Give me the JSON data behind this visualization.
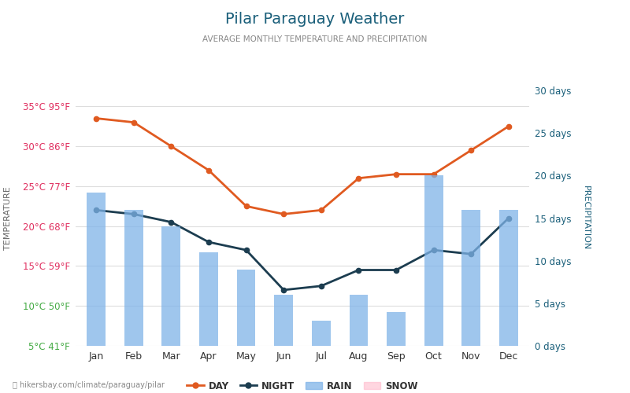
{
  "title": "Pilar Paraguay Weather",
  "subtitle": "AVERAGE MONTHLY TEMPERATURE AND PRECIPITATION",
  "months": [
    "Jan",
    "Feb",
    "Mar",
    "Apr",
    "May",
    "Jun",
    "Jul",
    "Aug",
    "Sep",
    "Oct",
    "Nov",
    "Dec"
  ],
  "day_temps": [
    33.5,
    33.0,
    30.0,
    27.0,
    22.5,
    21.5,
    22.0,
    26.0,
    26.5,
    26.5,
    29.5,
    32.5
  ],
  "night_temps": [
    22.0,
    21.5,
    20.5,
    18.0,
    17.0,
    12.0,
    12.5,
    14.5,
    14.5,
    17.0,
    16.5,
    21.0
  ],
  "rain_days": [
    18,
    16,
    14,
    11,
    9,
    6,
    3,
    6,
    4,
    20,
    16,
    16
  ],
  "ylim_temp": [
    5,
    37
  ],
  "ylim_precip": [
    0,
    30
  ],
  "yticks_temp": [
    5,
    10,
    15,
    20,
    25,
    30,
    35
  ],
  "ytick_labels_temp": [
    "5°C 41°F",
    "10°C 50°F",
    "15°C 59°F",
    "20°C 68°F",
    "25°C 77°F",
    "30°C 86°F",
    "35°C 95°F"
  ],
  "yticks_precip": [
    0,
    5,
    10,
    15,
    20,
    25,
    30
  ],
  "ytick_labels_precip": [
    "0 days",
    "5 days",
    "10 days",
    "15 days",
    "20 days",
    "25 days",
    "30 days"
  ],
  "day_color": "#e05a20",
  "night_color": "#1c3d50",
  "bar_color": "#7fb3e8",
  "bar_alpha": 0.75,
  "title_color": "#1a5f7a",
  "background_color": "#ffffff",
  "grid_color": "#dddddd",
  "footer_text": "hikersbay.com/climate/paraguay/pilar",
  "legend_day": "DAY",
  "legend_night": "NIGHT",
  "legend_rain": "RAIN",
  "legend_snow": "SNOW",
  "ytick_colors": [
    "#44aa44",
    "#44aa44",
    "#e03060",
    "#e03060",
    "#e03060",
    "#e03060",
    "#e03060"
  ]
}
